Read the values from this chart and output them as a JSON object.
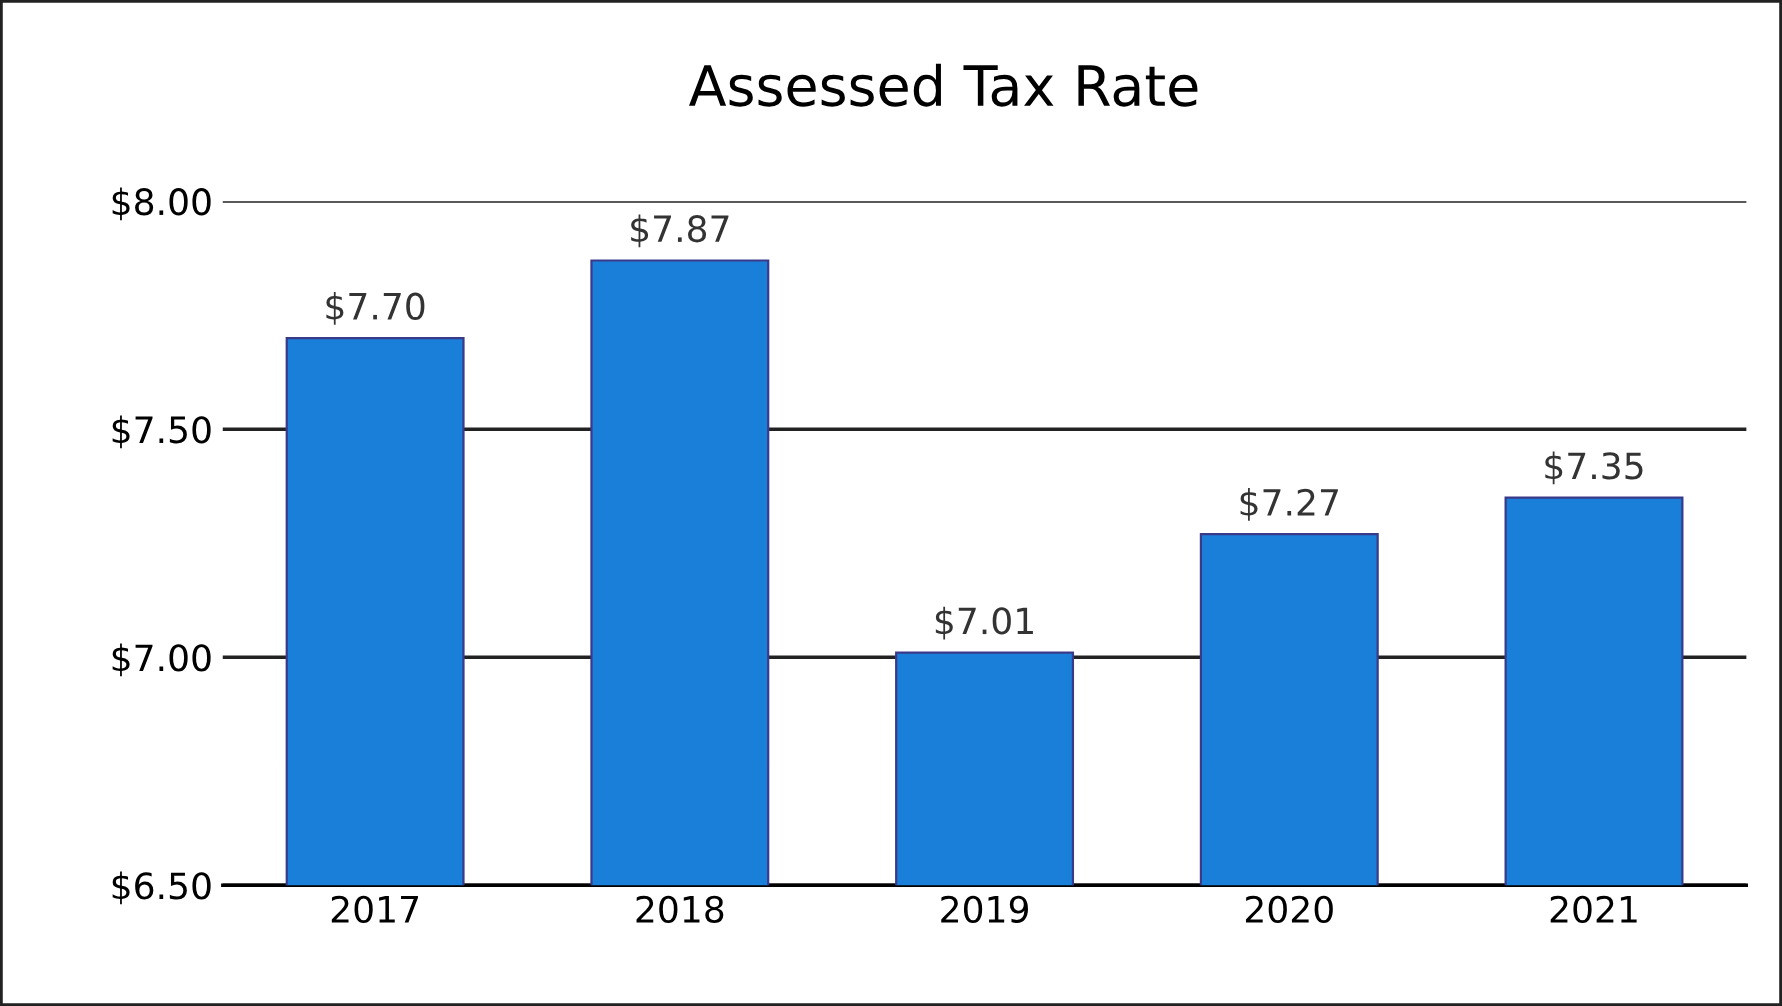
{
  "chart_data": {
    "type": "bar",
    "title": "Assessed Tax Rate",
    "categories": [
      "2017",
      "2018",
      "2019",
      "2020",
      "2021"
    ],
    "values": [
      7.7,
      7.87,
      7.01,
      7.27,
      7.35
    ],
    "value_labels": [
      "$7.70",
      "$7.87",
      "$7.01",
      "$7.27",
      "$7.35"
    ],
    "color": "#1a7fd8",
    "ylim": [
      6.5,
      8.0
    ],
    "yticks": [
      {
        "value": 6.5,
        "label": "$6.50"
      },
      {
        "value": 7.0,
        "label": "$7.00"
      },
      {
        "value": 7.5,
        "label": "$7.50"
      },
      {
        "value": 8.0,
        "label": "$8.00"
      }
    ],
    "grid": "y",
    "legend": false
  }
}
